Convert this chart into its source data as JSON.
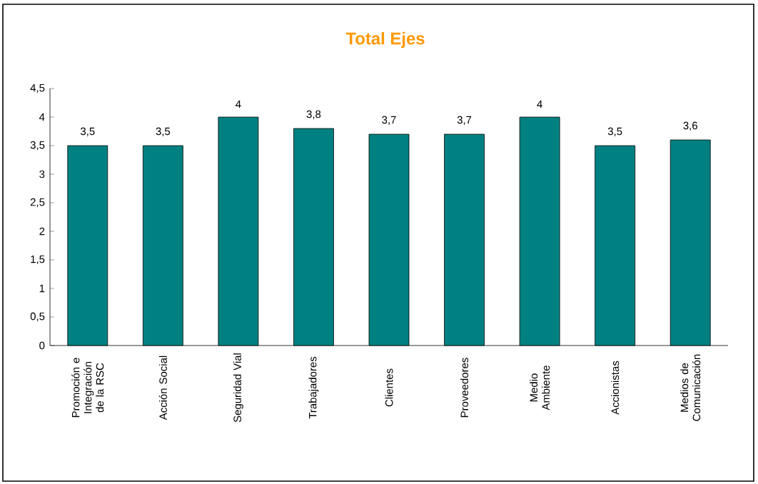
{
  "chart_data": {
    "type": "bar",
    "title": "Total Ejes",
    "categories": [
      "Promoción e Integración de la RSC",
      "Acción Social",
      "Seguridad Vial",
      "Trabajadores",
      "Clientes",
      "Proveedores",
      "Medio Ambiente",
      "Accionistas",
      "Medios de Comunicación"
    ],
    "values": [
      3.5,
      3.5,
      4,
      3.8,
      3.7,
      3.7,
      4,
      3.5,
      3.6
    ],
    "value_labels": [
      "3,5",
      "3,5",
      "4",
      "3,8",
      "3,7",
      "3,7",
      "4",
      "3,5",
      "3,6"
    ],
    "color": "#008080",
    "ylim": [
      0,
      4.5
    ],
    "yticks": [
      0,
      {
        "value": 0.5,
        "label": "0,5"
      },
      1,
      {
        "value": 1.5,
        "label": "1,5"
      },
      2,
      {
        "value": 2.5,
        "label": "2,5"
      },
      3,
      {
        "value": 3.5,
        "label": "3,5"
      },
      4,
      {
        "value": 4.5,
        "label": "4,5"
      }
    ]
  }
}
